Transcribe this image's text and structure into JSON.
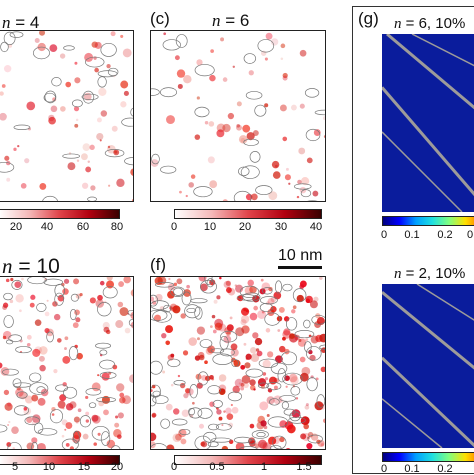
{
  "panels": {
    "a": {
      "title_var": "n",
      "title_rest": " = 4",
      "ticks": [
        "20",
        "40",
        "60",
        "80"
      ]
    },
    "c": {
      "letter": "(c)",
      "title_var": "n",
      "title_rest": " = 6",
      "ticks": [
        "0",
        "10",
        "20",
        "30",
        "40"
      ]
    },
    "e": {
      "title_var": "n",
      "title_rest": " = 10",
      "ticks": [
        "5",
        "10",
        "15",
        "20"
      ]
    },
    "f": {
      "letter": "(f)",
      "ticks": [
        "0",
        "0.5",
        "1",
        "1.5"
      ],
      "scalebar": "10 nm"
    },
    "g": {
      "letter": "(g)",
      "title_top_var": "n",
      "title_top_rest": " = 6, 10%",
      "title_bottom_var": "n",
      "title_bottom_rest": " = 2, 10%",
      "ticks": [
        "0",
        "0.1",
        "0.2",
        "0"
      ]
    }
  },
  "colors": {
    "map_low": "#ffffff",
    "map_high": "#c4000f",
    "dark_blue": "#0a1c9c",
    "stripe": "#b7b29a"
  }
}
